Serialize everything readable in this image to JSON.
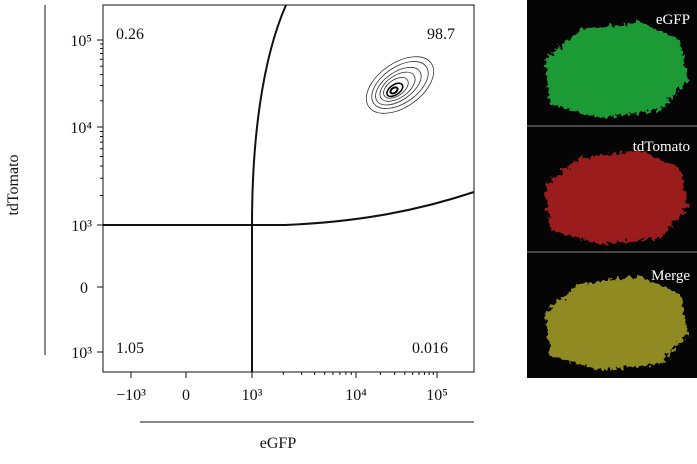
{
  "plot": {
    "y_axis_label": "tdTomato",
    "x_axis_label": "eGFP",
    "y_tick_labels": [
      "10⁵",
      "10⁴",
      "10³",
      "0",
      "10³"
    ],
    "x_tick_labels": [
      "−10³",
      "0",
      "10³",
      "10⁴",
      "10⁵"
    ],
    "quadrants": {
      "upper_left": "0.26",
      "upper_right": "98.7",
      "lower_left": "1.05",
      "lower_right": "0.016"
    }
  },
  "images": {
    "labels": [
      "eGFP",
      "tdTomato",
      "Merge"
    ]
  }
}
